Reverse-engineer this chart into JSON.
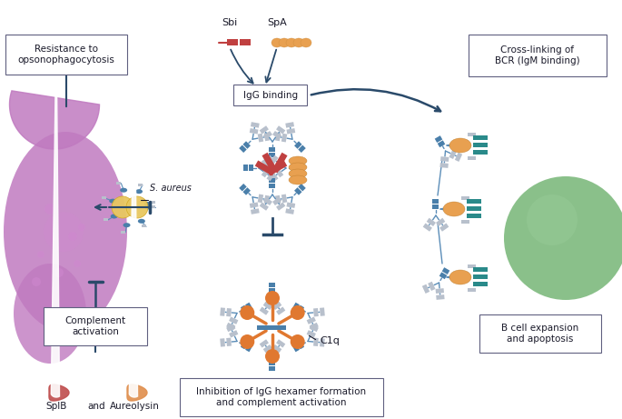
{
  "bg_color": "#ffffff",
  "fig_width": 6.85,
  "fig_height": 4.61,
  "colors": {
    "blue_ig": "#5b8db8",
    "blue_fc": "#4a7faa",
    "orange_spa": "#e8a050",
    "red_sbi": "#c04040",
    "gray_fab": "#b8c0cc",
    "teal_bcr": "#2a8a8a",
    "green_bcell": "#7ab87a",
    "green_bcell_hi": "#9acd9a",
    "purple_cell": "#c07ac0",
    "purple_cell_dark": "#a060a8",
    "yellow_staph": "#e8c860",
    "orange_c1q": "#e07830",
    "orange_enzyme": "#e09050",
    "red_enzyme": "#c05050",
    "arrow_dark": "#2a4a6a",
    "box_border": "#606080",
    "text_dark": "#1a1a2a"
  },
  "labels": {
    "sbi": "Sbi",
    "spa": "SpA",
    "igg_binding": "IgG binding",
    "resistance": "Resistance to\nopsonophagocytosis",
    "saureus": "S. aureus",
    "complement": "Complement\nactivation",
    "splb": "SplB",
    "and": "and",
    "aureolysin": "Aureolysin",
    "inhibition": "Inhibition of IgG hexamer formation\nand complement activation",
    "c1q": "C1q",
    "crosslink": "Cross-linking of\nBCR (IgM binding)",
    "bcell": "B cell expansion\nand apoptosis"
  }
}
